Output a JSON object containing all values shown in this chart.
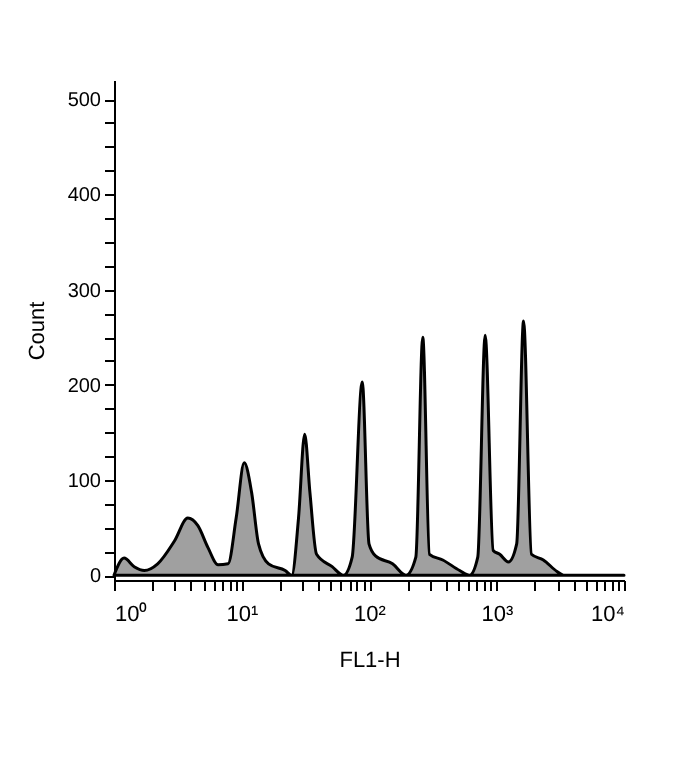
{
  "chart_data": {
    "type": "area",
    "xlabel": "FL1-H",
    "ylabel": "Count",
    "log": "x",
    "x": [
      1,
      1.2,
      1.44,
      1.73,
      2.2,
      2.98,
      3.79,
      4.55,
      5.46,
      6.55,
      7.85,
      9.08,
      10.5,
      12,
      13.6,
      16.3,
      22,
      24.8,
      28,
      31.3,
      34.4,
      38.8,
      51.4,
      63.1,
      73.8,
      88.5,
      100,
      113,
      153,
      195,
      233,
      264,
      298,
      379,
      514,
      615,
      713,
      815,
      942,
      1060,
      1240,
      1440,
      1630,
      1880,
      2330,
      2980,
      3360,
      10000
    ],
    "series": [
      {
        "color": "#a0a0a0",
        "values": [
          0,
          18,
          9,
          5,
          12,
          36,
          60,
          52,
          29,
          11,
          12,
          60,
          118,
          87,
          33,
          12,
          5,
          0,
          60,
          148,
          87,
          22,
          9,
          0,
          19,
          203,
          33,
          20,
          12,
          0,
          19,
          250,
          22,
          16,
          5,
          0,
          19,
          252,
          26,
          22,
          14,
          33,
          267,
          22,
          16,
          4,
          0,
          0
        ]
      }
    ],
    "xlim": [
      1,
      10000
    ],
    "xticks": [
      {
        "value": 1,
        "label": "10⁰"
      },
      {
        "value": 2,
        "label": null
      },
      {
        "value": 3,
        "label": null
      },
      {
        "value": 4,
        "label": null
      },
      {
        "value": 5,
        "label": null
      },
      {
        "value": 6,
        "label": null
      },
      {
        "value": 7,
        "label": null
      },
      {
        "value": 8,
        "label": null
      },
      {
        "value": 9,
        "label": null
      },
      {
        "value": 10,
        "label": "10¹"
      },
      {
        "value": 20,
        "label": null
      },
      {
        "value": 30,
        "label": null
      },
      {
        "value": 40,
        "label": null
      },
      {
        "value": 50,
        "label": null
      },
      {
        "value": 60,
        "label": null
      },
      {
        "value": 70,
        "label": null
      },
      {
        "value": 80,
        "label": null
      },
      {
        "value": 90,
        "label": null
      },
      {
        "value": 100,
        "label": "10²"
      },
      {
        "value": 200,
        "label": null
      },
      {
        "value": 300,
        "label": null
      },
      {
        "value": 400,
        "label": null
      },
      {
        "value": 500,
        "label": null
      },
      {
        "value": 600,
        "label": null
      },
      {
        "value": 700,
        "label": null
      },
      {
        "value": 800,
        "label": null
      },
      {
        "value": 900,
        "label": null
      },
      {
        "value": 1000,
        "label": "10³"
      },
      {
        "value": 2000,
        "label": null
      },
      {
        "value": 3000,
        "label": null
      },
      {
        "value": 4000,
        "label": null
      },
      {
        "value": 5000,
        "label": null
      },
      {
        "value": 6000,
        "label": null
      },
      {
        "value": 7000,
        "label": null
      },
      {
        "value": 8000,
        "label": null
      },
      {
        "value": 9000,
        "label": null
      },
      {
        "value": 10000,
        "label": "10⁴"
      }
    ],
    "ylim": [
      -5,
      520
    ],
    "yticks": [
      0,
      {
        "value": 25,
        "label": null
      },
      {
        "value": 50,
        "label": null
      },
      {
        "value": 75,
        "label": null
      },
      100,
      {
        "value": 125,
        "label": null
      },
      {
        "value": 150,
        "label": null
      },
      {
        "value": 175,
        "label": null
      },
      200,
      {
        "value": 225,
        "label": null
      },
      {
        "value": 250,
        "label": null
      },
      {
        "value": 275,
        "label": null
      },
      300,
      {
        "value": 325,
        "label": null
      },
      {
        "value": 350,
        "label": null
      },
      {
        "value": 375,
        "label": null
      },
      400,
      {
        "value": 425,
        "label": null
      },
      {
        "value": 450,
        "label": null
      },
      {
        "value": 475,
        "label": null
      },
      500
    ],
    "grid": false
  }
}
